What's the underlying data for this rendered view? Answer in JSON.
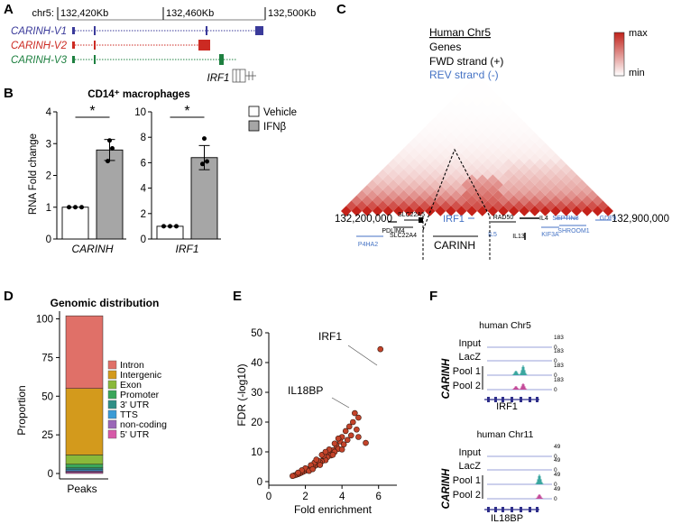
{
  "panel_labels": {
    "A": "A",
    "B": "B",
    "C": "C",
    "D": "D",
    "E": "E",
    "F": "F"
  },
  "panel_a": {
    "chrom": "chr5:",
    "ticks": [
      "132,420Kb",
      "132,460Kb",
      "132,500Kb"
    ],
    "isoforms": [
      {
        "name": "CARINH-V1",
        "color": "#3a3a9a"
      },
      {
        "name": "CARINH-V2",
        "color": "#cc2a22"
      },
      {
        "name": "CARINH-V3",
        "color": "#1e8040"
      }
    ],
    "gene": "IRF1"
  },
  "panel_b": {
    "title": "CD14⁺ macrophages",
    "ylabel": "RNA Fold change",
    "legend": [
      "Vehicle",
      "IFNβ"
    ],
    "sig": "*"
  },
  "panel_c": {
    "title": "Human Chr5",
    "line_genes": "Genes",
    "line_fwd": "FWD strand (+)",
    "line_rev": "REV strand (-)",
    "scale_max": "max",
    "scale_min": "min",
    "coord_left": "132,200,000",
    "coord_right": "132,900,000",
    "tad_label": "CARINH",
    "genes_fwd": [
      "PDLIM4",
      "SLC22A5",
      "SLC22A4",
      "RAD50",
      "IL4",
      "IL13"
    ],
    "genes_rev": [
      "P4HA2",
      "IRF1",
      "IL5",
      "KIF3A",
      "SEPTIN8",
      "SHROOM1",
      "GDF9"
    ]
  },
  "panel_d": {
    "title": "Genomic distribution",
    "ylabel": "Proportion",
    "xlabel": "Peaks"
  },
  "panel_e": {
    "labels": [
      "IRF1",
      "IL18BP"
    ]
  },
  "panel_f": {
    "title1": "human Chr5",
    "title2": "human Chr11",
    "tracks": [
      "Input",
      "LacZ",
      "Pool 1",
      "Pool 2"
    ],
    "group": "CARINH",
    "scale1": [
      "183",
      "0"
    ],
    "scale2": [
      "49",
      "0"
    ],
    "gene1": "IRF1",
    "gene2": "IL18BP"
  },
  "chart_data": [
    {
      "type": "bar",
      "title": "CD14⁺ macrophages",
      "ylabel": "RNA Fold change",
      "xlabel": "CARINH",
      "categories": [
        "Vehicle",
        "IFNβ"
      ],
      "values": [
        1.0,
        2.8
      ],
      "errors": [
        0.0,
        0.33
      ],
      "points": [
        [
          1.0,
          1.0,
          1.0
        ],
        [
          3.1,
          2.85,
          2.45
        ]
      ],
      "ylim": [
        0,
        4
      ],
      "yticks": [
        "0",
        "1",
        "2",
        "3",
        "4"
      ]
    },
    {
      "type": "bar",
      "title": "",
      "ylabel": "",
      "xlabel": "IRF1",
      "categories": [
        "Vehicle",
        "IFNβ"
      ],
      "values": [
        1.0,
        6.4
      ],
      "errors": [
        0.0,
        0.95
      ],
      "points": [
        [
          1.0,
          1.0,
          1.0
        ],
        [
          7.9,
          6.1,
          5.9
        ]
      ],
      "ylim": [
        0,
        10
      ],
      "yticks": [
        "0",
        "2",
        "4",
        "6",
        "8",
        "10"
      ]
    },
    {
      "type": "bar",
      "stacked": true,
      "title": "Genomic distribution",
      "ylabel": "Proportion",
      "xlabel": "Peaks",
      "series": [
        {
          "name": "5' UTR",
          "value": 0.8,
          "color": "#d65aa8"
        },
        {
          "name": "non-coding",
          "value": 0.8,
          "color": "#9b67b8"
        },
        {
          "name": "TTS",
          "value": 0.8,
          "color": "#3a9bd5"
        },
        {
          "name": "3' UTR",
          "value": 1.2,
          "color": "#2f8f86"
        },
        {
          "name": "Promoter",
          "value": 2.4,
          "color": "#3aa65a"
        },
        {
          "name": "Exon",
          "value": 6.0,
          "color": "#8ab93a"
        },
        {
          "name": "Intergenic",
          "value": 43.0,
          "color": "#d39a1c"
        },
        {
          "name": "Intron",
          "value": 47.0,
          "color": "#e07068"
        }
      ],
      "ylim": [
        0,
        105
      ],
      "yticks": [
        "0",
        "25",
        "50",
        "75",
        "100"
      ]
    },
    {
      "type": "scatter",
      "xlabel": "Fold enrichment",
      "ylabel": "FDR (-log10)",
      "xlim": [
        0,
        7
      ],
      "ylim": [
        0,
        50
      ],
      "xticks": [
        "0",
        "2",
        "4",
        "6"
      ],
      "yticks": [
        "0",
        "10",
        "20",
        "30",
        "40",
        "50"
      ],
      "points": [
        [
          6.1,
          44.5
        ],
        [
          4.7,
          23.0
        ],
        [
          4.9,
          21.5
        ],
        [
          4.6,
          20.0
        ],
        [
          4.4,
          18.5
        ],
        [
          4.8,
          17.5
        ],
        [
          4.2,
          17.0
        ],
        [
          4.5,
          15.5
        ],
        [
          4.0,
          15.0
        ],
        [
          4.3,
          14.0
        ],
        [
          3.9,
          13.5
        ],
        [
          4.1,
          12.5
        ],
        [
          3.7,
          12.0
        ],
        [
          3.8,
          11.0
        ],
        [
          3.5,
          10.5
        ],
        [
          3.6,
          10.0
        ],
        [
          3.3,
          9.5
        ],
        [
          3.4,
          8.8
        ],
        [
          3.2,
          8.2
        ],
        [
          3.0,
          7.8
        ],
        [
          3.1,
          7.2
        ],
        [
          2.9,
          6.8
        ],
        [
          2.8,
          6.4
        ],
        [
          2.7,
          6.0
        ],
        [
          2.6,
          5.6
        ],
        [
          2.5,
          5.2
        ],
        [
          2.4,
          4.9
        ],
        [
          2.3,
          4.6
        ],
        [
          2.2,
          4.3
        ],
        [
          2.1,
          4.0
        ],
        [
          2.0,
          3.7
        ],
        [
          1.9,
          3.4
        ],
        [
          1.8,
          3.1
        ],
        [
          1.7,
          2.8
        ],
        [
          1.6,
          2.5
        ],
        [
          1.5,
          2.3
        ],
        [
          1.4,
          2.1
        ],
        [
          1.3,
          1.9
        ],
        [
          2.5,
          6.4
        ],
        [
          2.7,
          7.0
        ],
        [
          3.0,
          8.7
        ],
        [
          2.3,
          5.5
        ],
        [
          2.0,
          4.5
        ],
        [
          1.8,
          3.8
        ],
        [
          3.3,
          10.8
        ],
        [
          3.6,
          12.8
        ],
        [
          2.9,
          9.0
        ],
        [
          2.6,
          7.4
        ],
        [
          4.9,
          15.0
        ],
        [
          5.3,
          13.0
        ],
        [
          3.8,
          14.5
        ],
        [
          2.2,
          3.6
        ],
        [
          2.4,
          4.2
        ],
        [
          1.6,
          3.0
        ],
        [
          3.5,
          9.0
        ],
        [
          3.1,
          10.0
        ],
        [
          2.8,
          5.6
        ],
        [
          4.0,
          10.8
        ]
      ]
    }
  ]
}
